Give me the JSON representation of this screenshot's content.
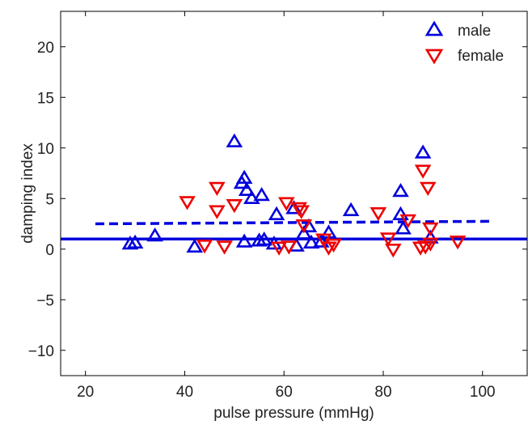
{
  "chart_data": {
    "type": "scatter",
    "xlabel": "pulse pressure    (mmHg)",
    "ylabel": "damping index",
    "xlim": [
      15,
      109
    ],
    "ylim": [
      -12.5,
      23.5
    ],
    "xticks": [
      20,
      40,
      60,
      80,
      100
    ],
    "yticks": [
      -10,
      -5,
      0,
      5,
      10,
      15,
      20
    ],
    "xtick_labels": [
      "20",
      "40",
      "60",
      "80",
      "100"
    ],
    "ytick_labels": [
      "−10",
      "−5",
      "0",
      "5",
      "10",
      "15",
      "20"
    ],
    "grid": false,
    "legend_position": "top-right",
    "colors": {
      "male": "#0000dd",
      "female": "#ee0000"
    },
    "series": [
      {
        "name": "male",
        "marker": "triangle-up",
        "color": "#0000dd",
        "points": [
          [
            29,
            0.5
          ],
          [
            30,
            0.6
          ],
          [
            34,
            1.3
          ],
          [
            42,
            0.2
          ],
          [
            50,
            10.6
          ],
          [
            51.5,
            6.5
          ],
          [
            52,
            7.0
          ],
          [
            52,
            0.7
          ],
          [
            52.5,
            5.8
          ],
          [
            53.5,
            5.0
          ],
          [
            55,
            0.8
          ],
          [
            55.5,
            5.3
          ],
          [
            56,
            0.9
          ],
          [
            58,
            0.5
          ],
          [
            58.5,
            3.4
          ],
          [
            62,
            4.0
          ],
          [
            62.5,
            0.3
          ],
          [
            64,
            1.5
          ],
          [
            65,
            2.2
          ],
          [
            65.5,
            0.6
          ],
          [
            67.5,
            0.7
          ],
          [
            69,
            1.6
          ],
          [
            73.5,
            3.8
          ],
          [
            83.5,
            3.4
          ],
          [
            84,
            2.0
          ],
          [
            83.5,
            5.7
          ],
          [
            88,
            9.5
          ],
          [
            89.5,
            1.1
          ]
        ]
      },
      {
        "name": "female",
        "marker": "triangle-down",
        "color": "#ee0000",
        "points": [
          [
            40.5,
            4.7
          ],
          [
            44,
            0.4
          ],
          [
            46.5,
            6.1
          ],
          [
            46.5,
            3.8
          ],
          [
            48,
            0.3
          ],
          [
            50,
            4.4
          ],
          [
            59,
            0.2
          ],
          [
            60.5,
            4.6
          ],
          [
            61,
            0.3
          ],
          [
            63,
            4.1
          ],
          [
            63.5,
            3.8
          ],
          [
            64,
            2.4
          ],
          [
            68,
            1.0
          ],
          [
            69,
            0.2
          ],
          [
            70,
            0.5
          ],
          [
            79,
            3.6
          ],
          [
            81,
            1.1
          ],
          [
            82,
            0.0
          ],
          [
            85,
            2.9
          ],
          [
            87.5,
            0.2
          ],
          [
            88,
            7.8
          ],
          [
            88.5,
            0.3
          ],
          [
            89,
            6.1
          ],
          [
            89.5,
            2.1
          ],
          [
            89.5,
            0.6
          ],
          [
            95,
            0.8
          ]
        ]
      }
    ],
    "lines": [
      {
        "style": "solid",
        "color": "#0000dd",
        "x": [
          15,
          109
        ],
        "y": [
          1.0,
          1.0
        ]
      },
      {
        "style": "dashed",
        "color": "#0000dd",
        "x": [
          22,
          102
        ],
        "y": [
          2.5,
          2.75
        ]
      }
    ]
  }
}
